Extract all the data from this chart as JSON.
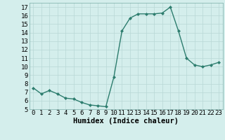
{
  "x": [
    0,
    1,
    2,
    3,
    4,
    5,
    6,
    7,
    8,
    9,
    10,
    11,
    12,
    13,
    14,
    15,
    16,
    17,
    18,
    19,
    20,
    21,
    22,
    23
  ],
  "y": [
    7.5,
    6.8,
    7.2,
    6.8,
    6.3,
    6.2,
    5.8,
    5.5,
    5.4,
    5.3,
    8.8,
    14.2,
    15.7,
    16.2,
    16.2,
    16.2,
    16.3,
    17.0,
    14.2,
    11.0,
    10.2,
    10.0,
    10.2,
    10.5
  ],
  "line_color": "#2d7d6e",
  "marker": "D",
  "marker_size": 2.0,
  "bg_color": "#d4eeec",
  "grid_color": "#b8d8d6",
  "xlabel": "Humidex (Indice chaleur)",
  "xlim": [
    -0.5,
    23.5
  ],
  "ylim": [
    5,
    17.5
  ],
  "yticks": [
    5,
    6,
    7,
    8,
    9,
    10,
    11,
    12,
    13,
    14,
    15,
    16,
    17
  ],
  "xticks": [
    0,
    1,
    2,
    3,
    4,
    5,
    6,
    7,
    8,
    9,
    10,
    11,
    12,
    13,
    14,
    15,
    16,
    17,
    18,
    19,
    20,
    21,
    22,
    23
  ],
  "tick_fontsize": 6.5,
  "xlabel_fontsize": 7.5,
  "line_width": 1.0
}
